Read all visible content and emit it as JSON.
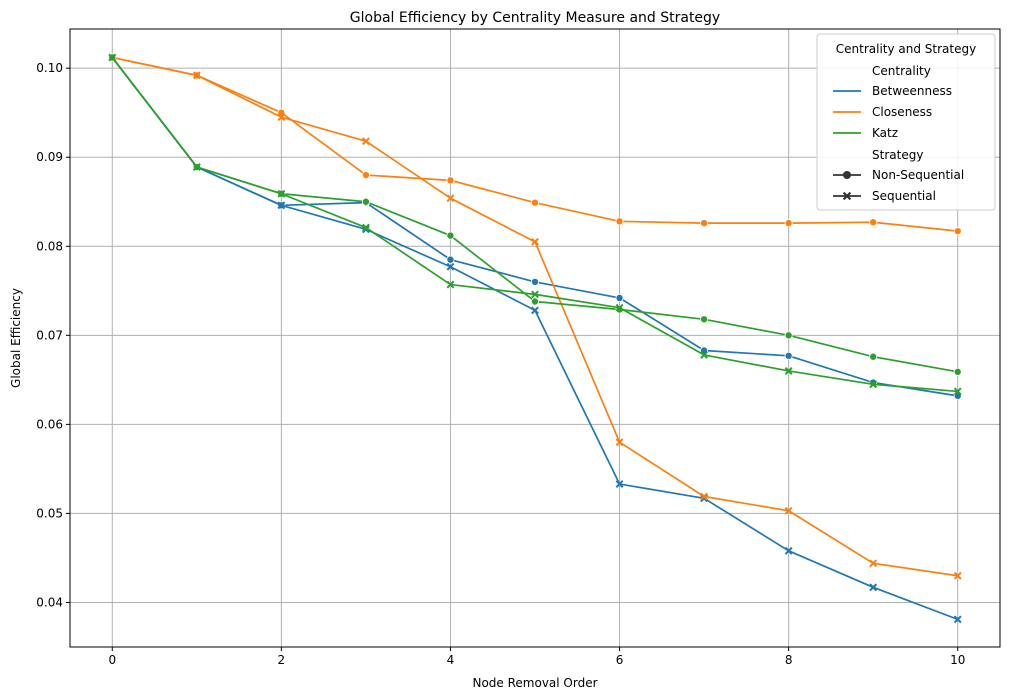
{
  "chart_data": {
    "type": "line",
    "title": "Global Efficiency by Centrality Measure and Strategy",
    "xlabel": "Node Removal Order",
    "ylabel": "Global Efficiency",
    "xlim": [
      -0.5,
      10.5
    ],
    "ylim": [
      0.035,
      0.1044
    ],
    "xticks": [
      0,
      2,
      4,
      6,
      8,
      10
    ],
    "yticks": [
      0.04,
      0.05,
      0.06,
      0.07,
      0.08,
      0.09,
      0.1
    ],
    "ytick_labels": [
      "0.04",
      "0.05",
      "0.06",
      "0.07",
      "0.08",
      "0.09",
      "0.10"
    ],
    "grid": true,
    "x": [
      0,
      1,
      2,
      3,
      4,
      5,
      6,
      7,
      8,
      9,
      10
    ],
    "series": [
      {
        "name": "Betweenness",
        "strategy": "Non-Sequential",
        "color": "#1f77b4",
        "marker": "circle",
        "values": [
          0.1012,
          0.0889,
          0.0846,
          0.0849,
          0.0785,
          0.076,
          0.0742,
          0.0683,
          0.0677,
          0.0647,
          0.0632
        ]
      },
      {
        "name": "Betweenness",
        "strategy": "Sequential",
        "color": "#1f77b4",
        "marker": "x",
        "values": [
          0.1012,
          0.0889,
          0.0846,
          0.0819,
          0.0777,
          0.0728,
          0.0533,
          0.0517,
          0.0458,
          0.0417,
          0.0381
        ]
      },
      {
        "name": "Closeness",
        "strategy": "Non-Sequential",
        "color": "#ff7f0e",
        "marker": "circle",
        "values": [
          0.1012,
          0.0992,
          0.095,
          0.088,
          0.0874,
          0.0849,
          0.0828,
          0.0826,
          0.0826,
          0.0827,
          0.0817
        ]
      },
      {
        "name": "Closeness",
        "strategy": "Sequential",
        "color": "#ff7f0e",
        "marker": "x",
        "values": [
          0.1012,
          0.0992,
          0.0945,
          0.0918,
          0.0854,
          0.0805,
          0.058,
          0.0519,
          0.0503,
          0.0444,
          0.043
        ]
      },
      {
        "name": "Katz",
        "strategy": "Non-Sequential",
        "color": "#2ca02c",
        "marker": "circle",
        "values": [
          0.1012,
          0.0889,
          0.0859,
          0.085,
          0.0812,
          0.0738,
          0.0729,
          0.0718,
          0.07,
          0.0676,
          0.0659
        ]
      },
      {
        "name": "Katz",
        "strategy": "Sequential",
        "color": "#2ca02c",
        "marker": "x",
        "values": [
          0.1012,
          0.0889,
          0.0859,
          0.0821,
          0.0757,
          0.0746,
          0.0731,
          0.0678,
          0.066,
          0.0645,
          0.0637
        ]
      }
    ],
    "legend": {
      "title": "Centrality and Strategy",
      "placement": "top-right",
      "centrality_header": "Centrality",
      "strategy_header": "Strategy",
      "centrality_entries": [
        {
          "label": "Betweenness",
          "color": "#1f77b4"
        },
        {
          "label": "Closeness",
          "color": "#ff7f0e"
        },
        {
          "label": "Katz",
          "color": "#2ca02c"
        }
      ],
      "strategy_entries": [
        {
          "label": "Non-Sequential",
          "marker": "circle"
        },
        {
          "label": "Sequential",
          "marker": "x"
        }
      ]
    }
  }
}
